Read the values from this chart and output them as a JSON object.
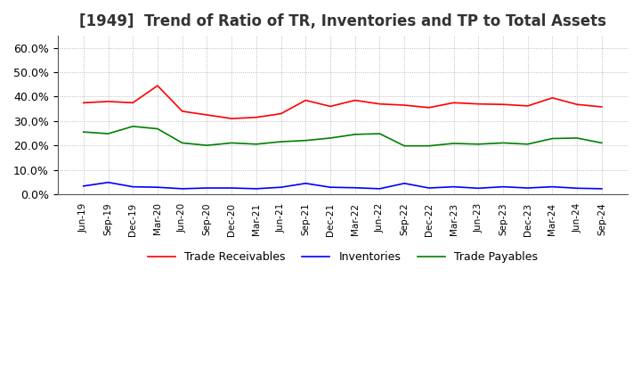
{
  "title": "[1949]  Trend of Ratio of TR, Inventories and TP to Total Assets",
  "title_fontsize": 12,
  "ylim": [
    0.0,
    0.65
  ],
  "yticks": [
    0.0,
    0.1,
    0.2,
    0.3,
    0.4,
    0.5,
    0.6
  ],
  "dates": [
    "Jun-19",
    "Sep-19",
    "Dec-19",
    "Mar-20",
    "Jun-20",
    "Sep-20",
    "Dec-20",
    "Mar-21",
    "Jun-21",
    "Sep-21",
    "Dec-21",
    "Mar-22",
    "Jun-22",
    "Sep-22",
    "Dec-22",
    "Mar-23",
    "Jun-23",
    "Sep-23",
    "Dec-23",
    "Mar-24",
    "Jun-24",
    "Sep-24"
  ],
  "trade_receivables": [
    0.375,
    0.38,
    0.375,
    0.445,
    0.34,
    0.325,
    0.31,
    0.315,
    0.33,
    0.385,
    0.36,
    0.385,
    0.37,
    0.365,
    0.355,
    0.375,
    0.37,
    0.368,
    0.362,
    0.395,
    0.368,
    0.358
  ],
  "inventories": [
    0.033,
    0.048,
    0.03,
    0.028,
    0.022,
    0.025,
    0.025,
    0.022,
    0.028,
    0.044,
    0.028,
    0.026,
    0.022,
    0.044,
    0.025,
    0.03,
    0.024,
    0.03,
    0.025,
    0.03,
    0.024,
    0.022
  ],
  "trade_payables": [
    0.255,
    0.248,
    0.278,
    0.268,
    0.21,
    0.2,
    0.21,
    0.205,
    0.215,
    0.22,
    0.23,
    0.245,
    0.248,
    0.198,
    0.198,
    0.208,
    0.205,
    0.21,
    0.205,
    0.228,
    0.23,
    0.21
  ],
  "tr_color": "#ff0000",
  "inv_color": "#0000ff",
  "tp_color": "#008000",
  "line_width": 1.2,
  "grid_color": "#aaaaaa",
  "background_color": "#ffffff",
  "legend_labels": [
    "Trade Receivables",
    "Inventories",
    "Trade Payables"
  ]
}
